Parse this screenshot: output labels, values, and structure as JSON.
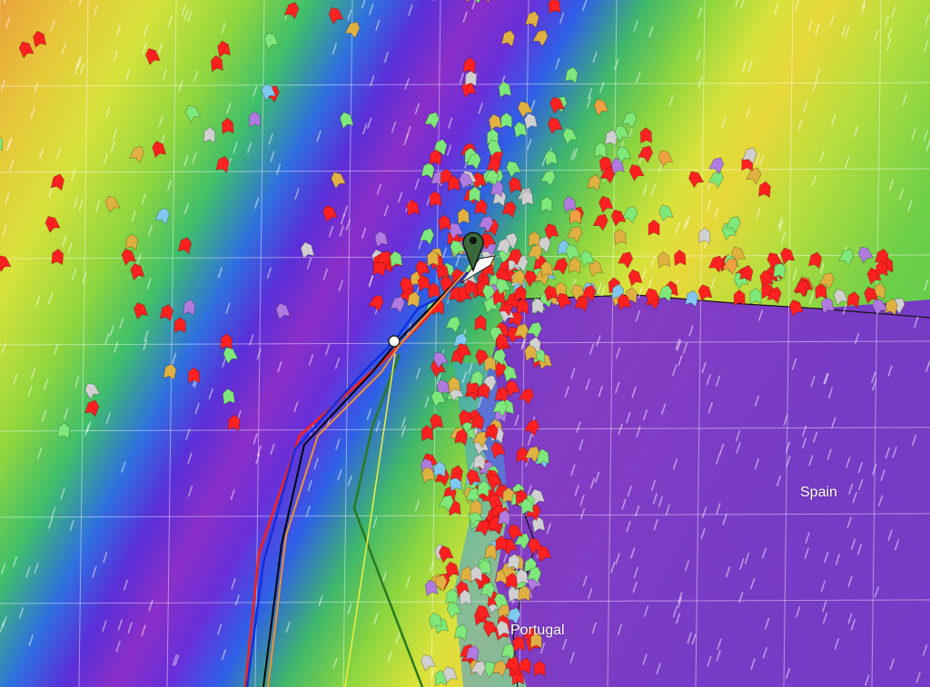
{
  "map": {
    "labels": {
      "spain": "Spain",
      "portugal": "Portugal"
    },
    "colors": {
      "land_sea_purple": "#7a2fd0",
      "track_blue": "#1030e0",
      "track_red": "#ff2010",
      "track_black": "#000000",
      "track_orange": "#f59030",
      "track_green": "#2a7a20",
      "track_yellow": "#f0f040",
      "marker": "#3a6a3a"
    },
    "boat_colors": [
      "#ff2020",
      "#7ee87a",
      "#e0b040",
      "#d0d0d0",
      "#b07ae0",
      "#80c8f0",
      "#f0a040"
    ]
  }
}
